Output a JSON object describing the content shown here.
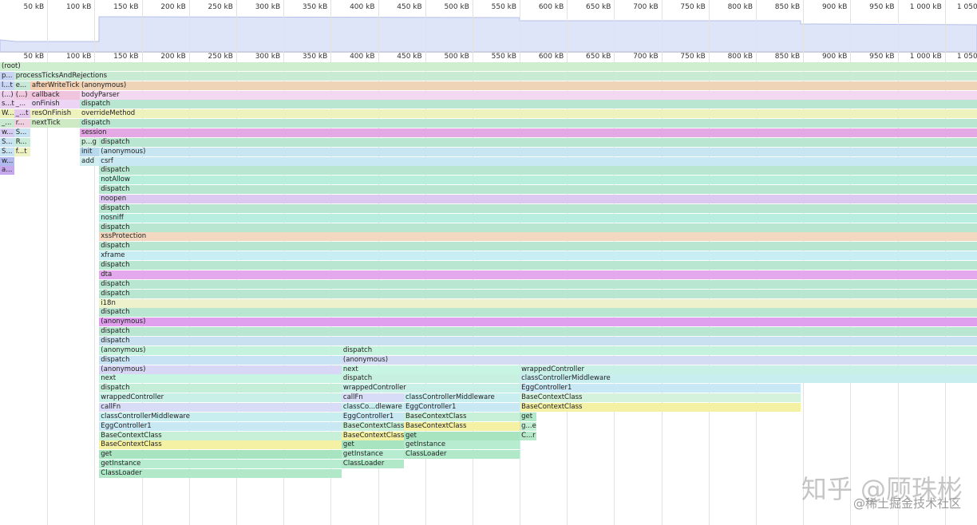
{
  "flame": {
    "xlim": [
      0,
      1034
    ],
    "ticks": [
      {
        "value": 50,
        "label": "50 kB"
      },
      {
        "value": 100,
        "label": "100 kB"
      },
      {
        "value": 150,
        "label": "150 kB"
      },
      {
        "value": 200,
        "label": "200 kB"
      },
      {
        "value": 250,
        "label": "250 kB"
      },
      {
        "value": 300,
        "label": "300 kB"
      },
      {
        "value": 350,
        "label": "350 kB"
      },
      {
        "value": 400,
        "label": "400 kB"
      },
      {
        "value": 450,
        "label": "450 kB"
      },
      {
        "value": 500,
        "label": "500 kB"
      },
      {
        "value": 550,
        "label": "550 kB"
      },
      {
        "value": 600,
        "label": "600 kB"
      },
      {
        "value": 650,
        "label": "650 kB"
      },
      {
        "value": 700,
        "label": "700 kB"
      },
      {
        "value": 750,
        "label": "750 kB"
      },
      {
        "value": 800,
        "label": "800 kB"
      },
      {
        "value": 850,
        "label": "850 kB"
      },
      {
        "value": 900,
        "label": "900 kB"
      },
      {
        "value": 950,
        "label": "950 kB"
      },
      {
        "value": 1000,
        "label": "1 000 kB"
      },
      {
        "value": 1050,
        "label": "1 050 kB"
      }
    ],
    "rows": [
      [
        {
          "label": "(root)",
          "start": 0,
          "end": 1034,
          "color": "#cfeecf"
        }
      ],
      [
        {
          "label": "p...",
          "start": 0,
          "end": 15,
          "color": "#c8d4f4"
        },
        {
          "label": "processTicksAndRejections",
          "start": 15,
          "end": 1034,
          "color": "#c9ebd3"
        }
      ],
      [
        {
          "label": "l...t",
          "start": 0,
          "end": 15,
          "color": "#c8d4f4"
        },
        {
          "label": "e...",
          "start": 15,
          "end": 32,
          "color": "#c8e8d8"
        },
        {
          "label": "afterWriteTick",
          "start": 32,
          "end": 84.5,
          "color": "#f2cfb0"
        },
        {
          "label": "(anonymous)",
          "start": 84.5,
          "end": 1034,
          "color": "#f0d4b8"
        }
      ],
      [
        {
          "label": "(...)",
          "start": 0,
          "end": 15,
          "color": "#ecd0ec"
        },
        {
          "label": "(...)",
          "start": 15,
          "end": 32,
          "color": "#f0c8e0"
        },
        {
          "label": "callback",
          "start": 32,
          "end": 84.5,
          "color": "#f0c4dc"
        },
        {
          "label": "bodyParser",
          "start": 84.5,
          "end": 1034,
          "color": "#f2d8f0"
        }
      ],
      [
        {
          "label": "s...t",
          "start": 0,
          "end": 15,
          "color": "#e8d0ee"
        },
        {
          "label": "_...",
          "start": 15,
          "end": 32,
          "color": "#f0d8f4"
        },
        {
          "label": "onFinish",
          "start": 32,
          "end": 84.5,
          "color": "#ecd4f4"
        },
        {
          "label": "dispatch",
          "start": 84.5,
          "end": 1034,
          "color": "#b8e6d0"
        }
      ],
      [
        {
          "label": "W...",
          "start": 0,
          "end": 15,
          "color": "#eaf0b8"
        },
        {
          "label": "_...t",
          "start": 15,
          "end": 32,
          "color": "#e4c8ee"
        },
        {
          "label": "resOnFinish",
          "start": 32,
          "end": 84.5,
          "color": "#eef2bc"
        },
        {
          "label": "overrideMethod",
          "start": 84.5,
          "end": 1034,
          "color": "#eef2bc"
        }
      ],
      [
        {
          "label": "_...",
          "start": 0,
          "end": 15,
          "color": "#c8e8d0"
        },
        {
          "label": "r...",
          "start": 15,
          "end": 32,
          "color": "#f0d0e0"
        },
        {
          "label": "nextTick",
          "start": 32,
          "end": 84.5,
          "color": "#cdeac4"
        },
        {
          "label": "dispatch",
          "start": 84.5,
          "end": 1034,
          "color": "#b8e6d0"
        }
      ],
      [
        {
          "label": "w...",
          "start": 0,
          "end": 15,
          "color": "#d8ccf2"
        },
        {
          "label": "S...",
          "start": 15,
          "end": 32,
          "color": "#c8e4f2"
        },
        {
          "label": "session",
          "start": 84.5,
          "end": 1034,
          "color": "#e4a8e4"
        }
      ],
      [
        {
          "label": "S...",
          "start": 0,
          "end": 15,
          "color": "#c8e4f2"
        },
        {
          "label": "R...",
          "start": 15,
          "end": 32,
          "color": "#c8ecd8"
        },
        {
          "label": "p...g",
          "start": 84.5,
          "end": 105,
          "color": "#c8ecd8"
        },
        {
          "label": "dispatch",
          "start": 105,
          "end": 1034,
          "color": "#b8e6d0"
        }
      ],
      [
        {
          "label": "S...",
          "start": 0,
          "end": 15,
          "color": "#c8e4f2"
        },
        {
          "label": "f...t",
          "start": 15,
          "end": 32,
          "color": "#eef2c4"
        },
        {
          "label": "init",
          "start": 84.5,
          "end": 105,
          "color": "#b8d8ec"
        },
        {
          "label": "(anonymous)",
          "start": 105,
          "end": 1034,
          "color": "#c8e6f2"
        }
      ],
      [
        {
          "label": "w...",
          "start": 0,
          "end": 15,
          "color": "#b0b8ec"
        },
        {
          "label": "add",
          "start": 84.5,
          "end": 105,
          "color": "#d0eef0"
        },
        {
          "label": "csrf",
          "start": 105,
          "end": 1034,
          "color": "#c8e8f4"
        }
      ],
      [
        {
          "label": "a...",
          "start": 0,
          "end": 15,
          "color": "#c8a8ec"
        },
        {
          "label": "dispatch",
          "start": 105,
          "end": 1034,
          "color": "#b8e6d0"
        }
      ],
      [
        {
          "label": "notAllow",
          "start": 105,
          "end": 1034,
          "color": "#b8eedc"
        }
      ],
      [
        {
          "label": "dispatch",
          "start": 105,
          "end": 1034,
          "color": "#b8e6d0"
        }
      ],
      [
        {
          "label": "noopen",
          "start": 105,
          "end": 1034,
          "color": "#dcc8f0"
        }
      ],
      [
        {
          "label": "dispatch",
          "start": 105,
          "end": 1034,
          "color": "#b8e6d0"
        }
      ],
      [
        {
          "label": "nosniff",
          "start": 105,
          "end": 1034,
          "color": "#b8eee0"
        }
      ],
      [
        {
          "label": "dispatch",
          "start": 105,
          "end": 1034,
          "color": "#b8e6d0"
        }
      ],
      [
        {
          "label": "xssProtection",
          "start": 105,
          "end": 1034,
          "color": "#f2d8c0"
        }
      ],
      [
        {
          "label": "dispatch",
          "start": 105,
          "end": 1034,
          "color": "#b8e6d0"
        }
      ],
      [
        {
          "label": "xframe",
          "start": 105,
          "end": 1034,
          "color": "#c8eef4"
        }
      ],
      [
        {
          "label": "dispatch",
          "start": 105,
          "end": 1034,
          "color": "#b8e6d0"
        }
      ],
      [
        {
          "label": "dta",
          "start": 105,
          "end": 1034,
          "color": "#e4a8ec"
        }
      ],
      [
        {
          "label": "dispatch",
          "start": 105,
          "end": 1034,
          "color": "#b8e6d0"
        }
      ],
      [
        {
          "label": "dispatch",
          "start": 105,
          "end": 1034,
          "color": "#b8e6d0"
        }
      ],
      [
        {
          "label": "i18n",
          "start": 105,
          "end": 1034,
          "color": "#eef2cc"
        }
      ],
      [
        {
          "label": "dispatch",
          "start": 105,
          "end": 1034,
          "color": "#b8e6d0"
        }
      ],
      [
        {
          "label": "(anonymous)",
          "start": 105,
          "end": 1034,
          "color": "#e0a0ee"
        }
      ],
      [
        {
          "label": "dispatch",
          "start": 105,
          "end": 1034,
          "color": "#b8e6d0"
        }
      ],
      [
        {
          "label": "dispatch",
          "start": 105,
          "end": 1034,
          "color": "#c8e0f0"
        }
      ],
      [
        {
          "label": "(anonymous)",
          "start": 105,
          "end": 361.5,
          "color": "#c4f2dc"
        },
        {
          "label": "dispatch",
          "start": 361.5,
          "end": 1034,
          "color": "#c4f2dc"
        }
      ],
      [
        {
          "label": "dispatch",
          "start": 105,
          "end": 361.5,
          "color": "#c8e4f4"
        },
        {
          "label": "(anonymous)",
          "start": 361.5,
          "end": 1034,
          "color": "#d4dcf4"
        }
      ],
      [
        {
          "label": "(anonymous)",
          "start": 105,
          "end": 361.5,
          "color": "#d8d8f6"
        },
        {
          "label": "next",
          "start": 361.5,
          "end": 550,
          "color": "#c8f4e4"
        },
        {
          "label": "wrappedController",
          "start": 550,
          "end": 1034,
          "color": "#c8f0e6"
        }
      ],
      [
        {
          "label": "next",
          "start": 105,
          "end": 361.5,
          "color": "#c8f4e4"
        },
        {
          "label": "dispatch",
          "start": 361.5,
          "end": 550,
          "color": "#c8f0e0"
        },
        {
          "label": "classControllerMiddleware",
          "start": 550,
          "end": 1034,
          "color": "#c8eef0"
        }
      ],
      [
        {
          "label": "dispatch",
          "start": 105,
          "end": 361.5,
          "color": "#c4eed8"
        },
        {
          "label": "wrappedController",
          "start": 361.5,
          "end": 550,
          "color": "#c8f0e6"
        },
        {
          "label": "EggController1",
          "start": 550,
          "end": 847,
          "color": "#c8e8f6"
        }
      ],
      [
        {
          "label": "wrappedController",
          "start": 105,
          "end": 361.5,
          "color": "#c8f0e6"
        },
        {
          "label": "callFn",
          "start": 361.5,
          "end": 427.5,
          "color": "#d8dcf6"
        },
        {
          "label": "classControllerMiddleware",
          "start": 427.5,
          "end": 550,
          "color": "#c8eef0"
        },
        {
          "label": "BaseContextClass",
          "start": 550,
          "end": 847,
          "color": "#d4f2dc"
        }
      ],
      [
        {
          "label": "callFn",
          "start": 105,
          "end": 361.5,
          "color": "#d8dcf6"
        },
        {
          "label": "classCo...dleware",
          "start": 361.5,
          "end": 427.5,
          "color": "#c8eef0"
        },
        {
          "label": "EggController1",
          "start": 427.5,
          "end": 550,
          "color": "#c8e8f4"
        },
        {
          "label": "BaseContextClass",
          "start": 550,
          "end": 847,
          "color": "#f4f0a4"
        }
      ],
      [
        {
          "label": "classControllerMiddleware",
          "start": 105,
          "end": 361.5,
          "color": "#c8eef0"
        },
        {
          "label": "EggController1",
          "start": 361.5,
          "end": 427.5,
          "color": "#c8e8f4"
        },
        {
          "label": "BaseContextClass",
          "start": 427.5,
          "end": 550,
          "color": "#c8f0d8"
        },
        {
          "label": "get",
          "start": 550,
          "end": 567.5,
          "color": "#b0e8c8"
        }
      ],
      [
        {
          "label": "EggController1",
          "start": 105,
          "end": 361.5,
          "color": "#c8e8f4"
        },
        {
          "label": "BaseContextClass",
          "start": 361.5,
          "end": 427.5,
          "color": "#c8f0d8"
        },
        {
          "label": "BaseContextClass",
          "start": 427.5,
          "end": 550,
          "color": "#f4f0a4"
        },
        {
          "label": "g...e",
          "start": 550,
          "end": 567.5,
          "color": "#c4eed4"
        }
      ],
      [
        {
          "label": "BaseContextClass",
          "start": 105,
          "end": 361.5,
          "color": "#c8f0d8"
        },
        {
          "label": "BaseContextClass",
          "start": 361.5,
          "end": 427.5,
          "color": "#f4f0a4"
        },
        {
          "label": "get",
          "start": 427.5,
          "end": 550,
          "color": "#a8e4c0"
        },
        {
          "label": "C...r",
          "start": 550,
          "end": 567.5,
          "color": "#b4e8c8"
        }
      ],
      [
        {
          "label": "BaseContextClass",
          "start": 105,
          "end": 361.5,
          "color": "#f4f0a4"
        },
        {
          "label": "get",
          "start": 361.5,
          "end": 427.5,
          "color": "#a8e4c0"
        },
        {
          "label": "getInstance",
          "start": 427.5,
          "end": 550,
          "color": "#b8ecd0"
        }
      ],
      [
        {
          "label": "get",
          "start": 105,
          "end": 361.5,
          "color": "#a8e4c0"
        },
        {
          "label": "getInstance",
          "start": 361.5,
          "end": 427.5,
          "color": "#b8ecd0"
        },
        {
          "label": "ClassLoader",
          "start": 427.5,
          "end": 550,
          "color": "#b0e8c8"
        }
      ],
      [
        {
          "label": "getInstance",
          "start": 105,
          "end": 361.5,
          "color": "#b8ecd0"
        },
        {
          "label": "ClassLoader",
          "start": 361.5,
          "end": 427.5,
          "color": "#b0e8c8"
        }
      ],
      [
        {
          "label": "ClassLoader",
          "start": 105,
          "end": 361.5,
          "color": "#b0e8c8"
        }
      ]
    ]
  },
  "watermark": {
    "main": "知乎 @顾珠彬",
    "sub": "@稀土掘金技术社区"
  }
}
